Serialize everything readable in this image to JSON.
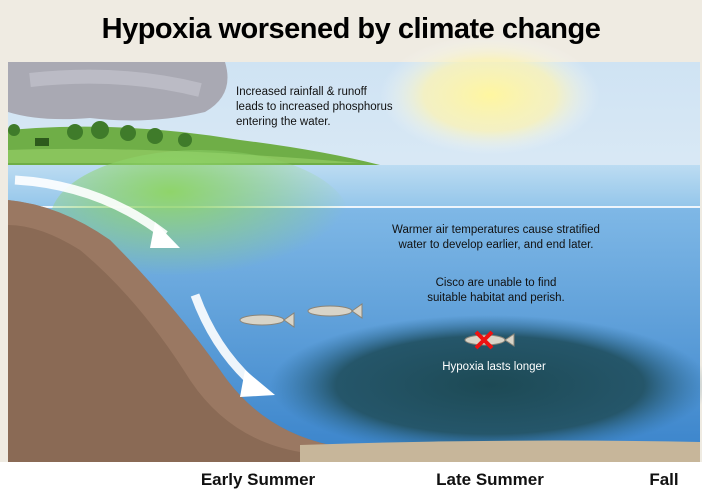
{
  "title": "Hypoxia worsened by climate change",
  "annotations": {
    "runoff": [
      "Increased rainfall & runoff",
      "leads to increased phosphorus",
      "entering the water."
    ],
    "stratification": [
      "Warmer air temperatures cause stratified",
      "water to develop earlier, and end later."
    ],
    "cisco": [
      "Cisco are unable to find",
      "suitable habitat and perish."
    ],
    "hypoxia": "Hypoxia lasts longer"
  },
  "timeline": [
    "Early Summer",
    "Late Summer",
    "Fall"
  ]
}
